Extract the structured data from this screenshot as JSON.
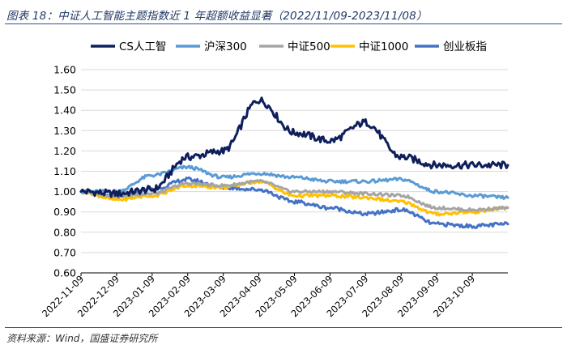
{
  "figure_title": "图表 18：中证人工智能主题指数近 1 年超额收益显著（2022/11/09-2023/11/08）",
  "source": "资料来源：Wind，国盛证券研究所",
  "chart_data": {
    "type": "line",
    "title": "图表 18：中证人工智能主题指数近 1 年超额收益显著（2022/11/09-2023/11/08）",
    "xlabel": "",
    "ylabel": "",
    "ylim": [
      0.6,
      1.6
    ],
    "yticks": [
      "0.60",
      "0.70",
      "0.80",
      "0.90",
      "1.00",
      "1.10",
      "1.20",
      "1.30",
      "1.40",
      "1.50",
      "1.60"
    ],
    "x": [
      "2022-11-09",
      "2022-12-09",
      "2023-01-09",
      "2023-02-09",
      "2023-03-09",
      "2023-04-09",
      "2023-05-09",
      "2023-06-09",
      "2023-07-09",
      "2023-08-09",
      "2023-09-09",
      "2023-10-09",
      "2023-11-08"
    ],
    "xticks": [
      "2022-11-09",
      "2022-12-09",
      "2023-01-09",
      "2023-02-09",
      "2023-03-09",
      "2023-04-09",
      "2023-05-09",
      "2023-06-09",
      "2023-07-09",
      "2023-08-09",
      "2023-09-09",
      "2023-10-09"
    ],
    "legend_position": "top",
    "series": [
      {
        "name": "CS人工智",
        "color": "#0f1f5c",
        "values": [
          1.0,
          0.99,
          1.01,
          1.17,
          1.2,
          1.45,
          1.29,
          1.25,
          1.34,
          1.17,
          1.13,
          1.13,
          1.13
        ]
      },
      {
        "name": "沪深300",
        "color": "#5b9bd5",
        "values": [
          1.0,
          1.0,
          1.08,
          1.12,
          1.07,
          1.09,
          1.07,
          1.05,
          1.05,
          1.06,
          1.0,
          0.98,
          0.97
        ]
      },
      {
        "name": "中证500",
        "color": "#a5a5a5",
        "values": [
          1.0,
          0.98,
          0.99,
          1.04,
          1.03,
          1.05,
          1.0,
          1.0,
          0.99,
          0.98,
          0.92,
          0.91,
          0.92
        ]
      },
      {
        "name": "中证1000",
        "color": "#ffc000",
        "values": [
          1.0,
          0.96,
          0.98,
          1.03,
          1.02,
          1.05,
          0.98,
          0.98,
          0.97,
          0.95,
          0.89,
          0.9,
          0.92
        ]
      },
      {
        "name": "创业板指",
        "color": "#4472c4",
        "values": [
          1.0,
          0.97,
          1.01,
          1.06,
          1.02,
          1.01,
          0.95,
          0.92,
          0.89,
          0.91,
          0.84,
          0.83,
          0.84
        ]
      }
    ]
  }
}
